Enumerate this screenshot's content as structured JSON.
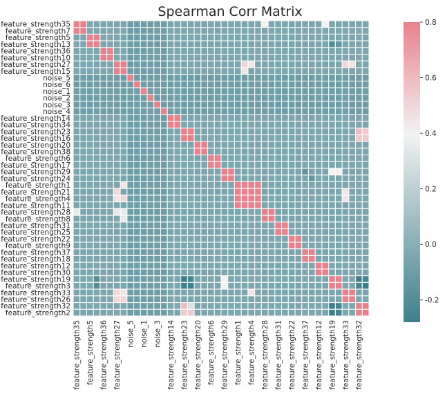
{
  "chart_data": {
    "type": "heatmap",
    "title": "Spearman Corr Matrix",
    "labels": [
      "feature_strength35",
      "feature_strength7",
      "feature_strength5",
      "feature_strength13",
      "feature_strength36",
      "feature_strength10",
      "feature_strength27",
      "feature_strength15",
      "noise_5",
      "noise_6",
      "noise_1",
      "noise_2",
      "noise_3",
      "noise_4",
      "feature_strength14",
      "feature_strength34",
      "feature_strength23",
      "feature_strength16",
      "feature_strength20",
      "feature_strength38",
      "feature_strength6",
      "feature_strength17",
      "feature_strength29",
      "feature_strength24",
      "feature_strength1",
      "feature_strength21",
      "feature_strength4",
      "feature_strength11",
      "feature_strength28",
      "feature_strength8",
      "feature_strength31",
      "feature_strength25",
      "feature_strength22",
      "feature_strength9",
      "feature_strength37",
      "feature_strength18",
      "feature_strength12",
      "feature_strength30",
      "feature_strength19",
      "feature_strength3",
      "feature_strength33",
      "feature_strength26",
      "feature_strength32",
      "feature_strength2"
    ],
    "y_tick_labels": [
      "feature_strength35",
      "feature_strength7",
      "feature_strength5",
      "feature_strength13",
      "feature_strength36",
      "feature_strength10",
      "feature_strength27",
      "feature_strength15",
      "noise_5",
      "noise_6",
      "noise_1",
      "noise_2",
      "noise_3",
      "noise_4",
      "feature_strength14",
      "feature_strength34",
      "feature_strength23",
      "feature_strength16",
      "feature_strength20",
      "feature_strength38",
      "feature_strength6",
      "feature_strength17",
      "feature_strength29",
      "feature_strength24",
      "feature_strength1",
      "feature_strength21",
      "feature_strength4",
      "feature_strength11",
      "feature_strength28",
      "feature_strength8",
      "feature_strength31",
      "feature_strength25",
      "feature_strength22",
      "feature_strength9",
      "feature_strength37",
      "feature_strength18",
      "feature_strength12",
      "feature_strength30",
      "feature_strength19",
      "feature_strength3",
      "feature_strength33",
      "feature_strength26",
      "feature_strength32",
      "feature_strength2"
    ],
    "x_tick_labels": [
      "feature_strength35",
      "feature_strength5",
      "feature_strength36",
      "feature_strength27",
      "noise_5",
      "noise_1",
      "noise_3",
      "feature_strength14",
      "feature_strength23",
      "feature_strength20",
      "feature_strength6",
      "feature_strength29",
      "feature_strength1",
      "feature_strength4",
      "feature_strength28",
      "feature_strength31",
      "feature_strength22",
      "feature_strength37",
      "feature_strength12",
      "feature_strength19",
      "feature_strength33",
      "feature_strength32"
    ],
    "x_tick_every": 2,
    "diagonal_value": 1.0,
    "blocks": [
      [
        0,
        1
      ],
      [
        2,
        3
      ],
      [
        4,
        5
      ],
      [
        6,
        7
      ],
      [
        14,
        15
      ],
      [
        16,
        17
      ],
      [
        18,
        19
      ],
      [
        20,
        21
      ],
      [
        22,
        23
      ],
      [
        24,
        27
      ],
      [
        28,
        29
      ],
      [
        30,
        31
      ],
      [
        32,
        33
      ],
      [
        34,
        35
      ],
      [
        36,
        37
      ],
      [
        38,
        39
      ],
      [
        40,
        41
      ],
      [
        42,
        43
      ]
    ],
    "within_block_value": 0.8,
    "background_value": -0.05,
    "noise_rows": [
      8,
      9,
      10,
      11,
      12,
      13
    ],
    "noise_background_value": -0.1,
    "notable_cells": [
      {
        "row": "feature_strength19",
        "col": "feature_strength23",
        "value": -0.3
      },
      {
        "row": "feature_strength19",
        "col": "feature_strength16",
        "value": -0.25
      },
      {
        "row": "feature_strength3",
        "col": "feature_strength23",
        "value": -0.3
      },
      {
        "row": "feature_strength3",
        "col": "feature_strength16",
        "value": -0.3
      },
      {
        "row": "feature_strength19",
        "col": "feature_strength32",
        "value": -0.3
      },
      {
        "row": "feature_strength19",
        "col": "feature_strength2",
        "value": -0.25
      },
      {
        "row": "feature_strength3",
        "col": "feature_strength32",
        "value": -0.25
      },
      {
        "row": "feature_strength3",
        "col": "feature_strength2",
        "value": -0.3
      },
      {
        "row": "feature_strength32",
        "col": "feature_strength23",
        "value": 0.6
      },
      {
        "row": "feature_strength2",
        "col": "feature_strength23",
        "value": 0.55
      },
      {
        "row": "feature_strength23",
        "col": "feature_strength32",
        "value": 0.6
      },
      {
        "row": "feature_strength23",
        "col": "feature_strength2",
        "value": 0.55
      },
      {
        "row": "feature_strength32",
        "col": "feature_strength16",
        "value": 0.3
      },
      {
        "row": "feature_strength16",
        "col": "feature_strength32",
        "value": 0.55
      },
      {
        "row": "feature_strength16",
        "col": "feature_strength2",
        "value": 0.55
      },
      {
        "row": "feature_strength2",
        "col": "feature_strength16",
        "value": 0.55
      },
      {
        "row": "feature_strength32",
        "col": "feature_strength19",
        "value": -0.3
      },
      {
        "row": "feature_strength2",
        "col": "feature_strength19",
        "value": -0.3
      },
      {
        "row": "feature_strength32",
        "col": "feature_strength3",
        "value": -0.25
      },
      {
        "row": "feature_strength2",
        "col": "feature_strength3",
        "value": -0.25
      },
      {
        "row": "feature_strength27",
        "col": "feature_strength21",
        "value": 0.5
      },
      {
        "row": "feature_strength27",
        "col": "feature_strength4",
        "value": 0.45
      },
      {
        "row": "feature_strength15",
        "col": "feature_strength21",
        "value": 0.45
      },
      {
        "row": "feature_strength21",
        "col": "feature_strength27",
        "value": 0.5
      },
      {
        "row": "feature_strength4",
        "col": "feature_strength27",
        "value": 0.45
      },
      {
        "row": "feature_strength4",
        "col": "feature_strength15",
        "value": 0.5
      },
      {
        "row": "feature_strength1",
        "col": "feature_strength15",
        "value": 0.45
      },
      {
        "row": "feature_strength33",
        "col": "feature_strength27",
        "value": 0.5
      },
      {
        "row": "feature_strength33",
        "col": "feature_strength15",
        "value": 0.45
      },
      {
        "row": "feature_strength26",
        "col": "feature_strength27",
        "value": 0.5
      },
      {
        "row": "feature_strength26",
        "col": "feature_strength15",
        "value": 0.5
      },
      {
        "row": "feature_strength27",
        "col": "feature_strength33",
        "value": 0.5
      },
      {
        "row": "feature_strength27",
        "col": "feature_strength26",
        "value": 0.45
      },
      {
        "row": "feature_strength21",
        "col": "feature_strength33",
        "value": 0.45
      },
      {
        "row": "feature_strength4",
        "col": "feature_strength33",
        "value": 0.45
      },
      {
        "row": "feature_strength33",
        "col": "feature_strength4",
        "value": 0.45
      },
      {
        "row": "feature_strength29",
        "col": "feature_strength19",
        "value": 0.4
      },
      {
        "row": "feature_strength29",
        "col": "feature_strength3",
        "value": 0.4
      },
      {
        "row": "feature_strength19",
        "col": "feature_strength29",
        "value": 0.4
      },
      {
        "row": "feature_strength3",
        "col": "feature_strength29",
        "value": 0.4
      },
      {
        "row": "feature_strength35",
        "col": "feature_strength30",
        "value": 0.4
      },
      {
        "row": "feature_strength35",
        "col": "feature_strength28",
        "value": 0.4
      },
      {
        "row": "feature_strength28",
        "col": "feature_strength35",
        "value": 0.35
      },
      {
        "row": "feature_strength28",
        "col": "feature_strength27",
        "value": 0.35
      },
      {
        "row": "feature_strength28",
        "col": "feature_strength15",
        "value": 0.35
      },
      {
        "row": "feature_strength8",
        "col": "feature_strength15",
        "value": 0.35
      },
      {
        "row": "feature_strength13",
        "col": "feature_strength19",
        "value": -0.2
      },
      {
        "row": "feature_strength13",
        "col": "feature_strength3",
        "value": -0.15
      },
      {
        "row": "feature_strength29",
        "col": "feature_strength37",
        "value": -0.15
      },
      {
        "row": "feature_strength24",
        "col": "feature_strength18",
        "value": -0.15
      },
      {
        "row": "feature_strength19",
        "col": "feature_strength13",
        "value": -0.2
      },
      {
        "row": "feature_strength3",
        "col": "feature_strength13",
        "value": -0.2
      }
    ],
    "colorbar": {
      "vmin": -0.28,
      "vmax": 0.8,
      "center": 0.4,
      "ticks": [
        "0.8",
        "0.6",
        "0.4",
        "0.2",
        "0.0",
        "-0.2"
      ],
      "tick_values": [
        0.8,
        0.6,
        0.4,
        0.2,
        0.0,
        -0.2
      ]
    },
    "colors": {
      "low": "#3f7f8c",
      "mid": "#f2f2f2",
      "high": "#e8818c",
      "gridline": "#ffffff",
      "text": "#262626"
    }
  }
}
